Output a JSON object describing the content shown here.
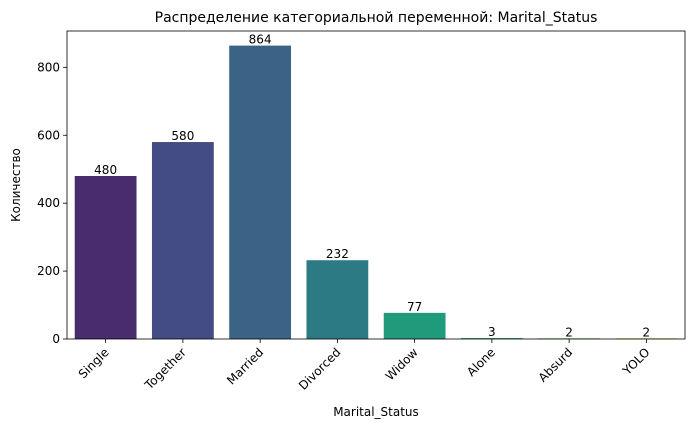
{
  "chart_data": {
    "type": "bar",
    "title": "Распределение категориальной переменной: Marital_Status",
    "xlabel": "Marital_Status",
    "ylabel": "Количество",
    "categories": [
      "Single",
      "Together",
      "Married",
      "Divorced",
      "Widow",
      "Alone",
      "Absurd",
      "YOLO"
    ],
    "values": [
      480,
      580,
      864,
      232,
      77,
      3,
      2,
      2
    ],
    "data_labels": [
      "480",
      "580",
      "864",
      "232",
      "77",
      "3",
      "2",
      "2"
    ],
    "ylim": [
      0,
      907
    ],
    "yticks": [
      0,
      200,
      400,
      600,
      800
    ],
    "ytick_labels": [
      "0",
      "200",
      "400",
      "600",
      "800"
    ],
    "grid": false,
    "legend": false,
    "colors": [
      "#482c6e",
      "#434c84",
      "#3a6385",
      "#2c7a84",
      "#1f9a7a",
      "#3ab66e",
      "#63c45a",
      "#a0d23e"
    ]
  }
}
